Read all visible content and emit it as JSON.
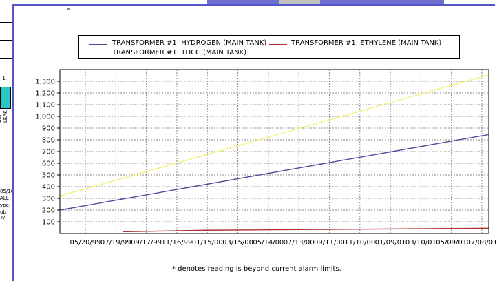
{
  "background_app": {
    "bar_top_label": "1",
    "bar_side_label": "AIR LEAK",
    "snippets": [
      "05/16/",
      "ALL",
      "ype:",
      "ub Ty"
    ]
  },
  "legend": {
    "items": [
      {
        "label": "TRANSFORMER #1: HYDROGEN (MAIN TANK)",
        "color": "#4b4b9a"
      },
      {
        "label": "TRANSFORMER #1: ETHYLENE (MAIN TANK)",
        "color": "#b03030"
      },
      {
        "label": "TRANSFORMER #1: TDCG (MAIN TANK)",
        "color": "#f4f078"
      }
    ]
  },
  "footnote": "* denotes reading is beyond current alarm limits.",
  "chart_data": {
    "type": "line",
    "x_tick_labels": [
      "05/20/99",
      "07/19/99",
      "09/17/99",
      "11/16/99",
      "01/15/00",
      "03/15/00",
      "05/14/00",
      "07/13/00",
      "09/11/00",
      "11/10/00",
      "01/09/01",
      "03/10/01",
      "05/09/01",
      "07/08/01"
    ],
    "y_tick_labels": [
      "100",
      "200",
      "300",
      "400",
      "500",
      "600",
      "700",
      "800",
      "900",
      "1,000",
      "1,100",
      "1,200",
      "1,300"
    ],
    "ylim": [
      0,
      1400
    ],
    "grid": true,
    "legend_position": "top",
    "series": [
      {
        "name": "TRANSFORMER #1: HYDROGEN (MAIN TANK)",
        "color": "#4b4b9a",
        "start": 200,
        "end": 845
      },
      {
        "name": "TRANSFORMER #1: ETHYLENE (MAIN TANK)",
        "color": "#b03030",
        "start": 15,
        "end": 45
      },
      {
        "name": "TRANSFORMER #1: TDCG (MAIN TANK)",
        "color": "#f4f078",
        "start": 320,
        "end": 1355
      }
    ]
  }
}
